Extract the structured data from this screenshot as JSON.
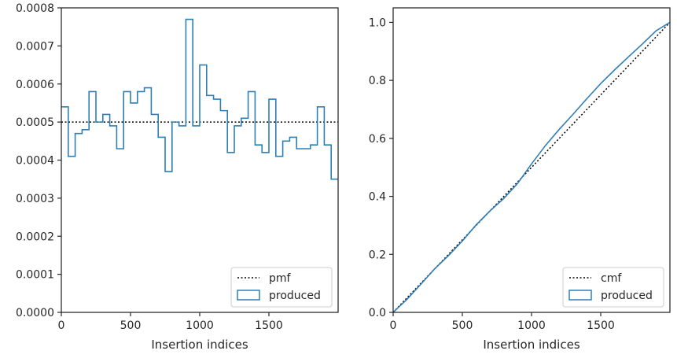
{
  "colors": {
    "produced": "#2f7fb5",
    "reference": "#000000",
    "frame": "#262626"
  },
  "chart_data": [
    {
      "type": "line",
      "step": true,
      "xlabel": "Insertion indices",
      "ylabel": "",
      "xlim": [
        0,
        2000
      ],
      "ylim": [
        0,
        0.0008
      ],
      "xticks": [
        0,
        500,
        1000,
        1500
      ],
      "xtick_labels": [
        "0",
        "500",
        "1000",
        "1500"
      ],
      "yticks": [
        0,
        0.0001,
        0.0002,
        0.0003,
        0.0004,
        0.0005,
        0.0006,
        0.0007,
        0.0008
      ],
      "ytick_labels": [
        "0.0000",
        "0.0001",
        "0.0002",
        "0.0003",
        "0.0004",
        "0.0005",
        "0.0006",
        "0.0007",
        "0.0008"
      ],
      "legend_position": "lower-right",
      "series": [
        {
          "name": "pmf",
          "style": "dotted",
          "x": [
            0,
            2000
          ],
          "y": [
            0.0005,
            0.0005
          ]
        },
        {
          "name": "produced",
          "style": "step",
          "bin_width": 50,
          "x": [
            0,
            50,
            100,
            150,
            200,
            250,
            300,
            350,
            400,
            450,
            500,
            550,
            600,
            650,
            700,
            750,
            800,
            850,
            900,
            950,
            1000,
            1050,
            1100,
            1150,
            1200,
            1250,
            1300,
            1350,
            1400,
            1450,
            1500,
            1550,
            1600,
            1650,
            1700,
            1750,
            1800,
            1850,
            1900,
            1950
          ],
          "y": [
            0.00054,
            0.00041,
            0.00047,
            0.00048,
            0.00058,
            0.0005,
            0.00052,
            0.00049,
            0.00043,
            0.00058,
            0.00055,
            0.00058,
            0.00059,
            0.00052,
            0.00046,
            0.00037,
            0.0005,
            0.00049,
            0.00077,
            0.00049,
            0.00065,
            0.00057,
            0.00056,
            0.00053,
            0.00042,
            0.00049,
            0.00051,
            0.00058,
            0.00044,
            0.00042,
            0.00056,
            0.00041,
            0.00045,
            0.00046,
            0.00043,
            0.00043,
            0.00044,
            0.00054,
            0.00044,
            0.00035
          ]
        }
      ]
    },
    {
      "type": "line",
      "xlabel": "Insertion indices",
      "ylabel": "",
      "xlim": [
        0,
        2000
      ],
      "ylim": [
        0,
        1.05
      ],
      "xticks": [
        0,
        500,
        1000,
        1500
      ],
      "xtick_labels": [
        "0",
        "500",
        "1000",
        "1500"
      ],
      "yticks": [
        0,
        0.2,
        0.4,
        0.6,
        0.8,
        1.0
      ],
      "ytick_labels": [
        "0.0",
        "0.2",
        "0.4",
        "0.6",
        "0.8",
        "1.0"
      ],
      "legend_position": "lower-right",
      "series": [
        {
          "name": "cmf",
          "style": "dotted",
          "x": [
            0,
            2000
          ],
          "y": [
            0,
            1.0
          ]
        },
        {
          "name": "produced",
          "style": "solid",
          "x": [
            0,
            100,
            200,
            300,
            400,
            500,
            600,
            700,
            800,
            900,
            1000,
            1100,
            1200,
            1300,
            1400,
            1500,
            1600,
            1700,
            1800,
            1900,
            2000
          ],
          "y": [
            0,
            0.045,
            0.097,
            0.15,
            0.196,
            0.246,
            0.302,
            0.35,
            0.393,
            0.445,
            0.512,
            0.575,
            0.631,
            0.683,
            0.737,
            0.789,
            0.836,
            0.881,
            0.925,
            0.971,
            1.0
          ]
        }
      ]
    }
  ]
}
